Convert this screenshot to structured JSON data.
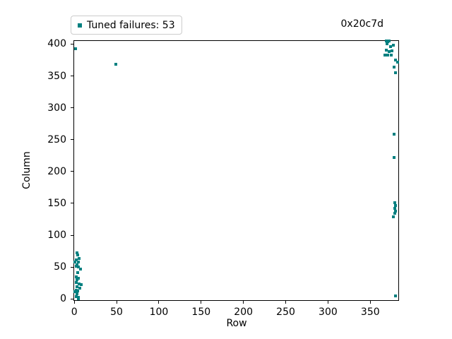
{
  "figure": {
    "legend": {
      "label": "Tuned failures: 53",
      "marker_color": "#008080"
    },
    "title_right": "0x20c7d"
  },
  "chart_data": {
    "type": "scatter",
    "title": "0x20c7d",
    "title_position": "right",
    "xlabel": "Row",
    "ylabel": "Column",
    "xlim": [
      -1,
      384
    ],
    "ylim": [
      -3,
      406
    ],
    "xticks": [
      0,
      50,
      100,
      150,
      200,
      250,
      300,
      350
    ],
    "yticks": [
      0,
      50,
      100,
      150,
      200,
      250,
      300,
      350,
      400
    ],
    "grid": false,
    "legend_position": "upper left, above axes",
    "marker": "square",
    "series": [
      {
        "name": "Tuned failures: 53",
        "color": "#008080",
        "points": [
          [
            3,
            72
          ],
          [
            4,
            69
          ],
          [
            5.5,
            64
          ],
          [
            2,
            61
          ],
          [
            1,
            58
          ],
          [
            5,
            58
          ],
          [
            3.5,
            54
          ],
          [
            2,
            51
          ],
          [
            4.5,
            50
          ],
          [
            7.5,
            47
          ],
          [
            4,
            41
          ],
          [
            2,
            35
          ],
          [
            5,
            32
          ],
          [
            3,
            30
          ],
          [
            2.5,
            26
          ],
          [
            6,
            24
          ],
          [
            8,
            22
          ],
          [
            3,
            19
          ],
          [
            6.5,
            17
          ],
          [
            2.5,
            14
          ],
          [
            4,
            12
          ],
          [
            1,
            11
          ],
          [
            3,
            8
          ],
          [
            2,
            4
          ],
          [
            5,
            2
          ],
          [
            4.5,
            0
          ],
          [
            1.5,
            393
          ],
          [
            49,
            368
          ],
          [
            369,
            405
          ],
          [
            372,
            405
          ],
          [
            370.5,
            404
          ],
          [
            370,
            401
          ],
          [
            377,
            398
          ],
          [
            374,
            396
          ],
          [
            369,
            390
          ],
          [
            375.5,
            389
          ],
          [
            372.5,
            388
          ],
          [
            367,
            383
          ],
          [
            371,
            383
          ],
          [
            375,
            383
          ],
          [
            379.5,
            375
          ],
          [
            382.5,
            372
          ],
          [
            378.5,
            364
          ],
          [
            380,
            355
          ],
          [
            378,
            259
          ],
          [
            378,
            222
          ],
          [
            379,
            151
          ],
          [
            380,
            147
          ],
          [
            379,
            142
          ],
          [
            380,
            138
          ],
          [
            379,
            134
          ],
          [
            377.5,
            129
          ],
          [
            380,
            5
          ]
        ]
      }
    ]
  }
}
